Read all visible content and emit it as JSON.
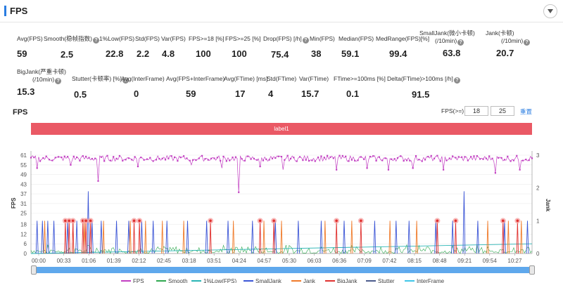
{
  "header": {
    "title": "FPS"
  },
  "stats": [
    {
      "label": "Avg(FPS)",
      "value": "59",
      "help": false
    },
    {
      "label": "Smooth(稳帧指数)",
      "value": "2.5",
      "help": true
    },
    {
      "label": "1%Low(FPS)",
      "value": "22.8",
      "help": false
    },
    {
      "label": "Std(FPS)",
      "value": "2.2",
      "help": false
    },
    {
      "label": "Var(FPS)",
      "value": "4.8",
      "help": false
    },
    {
      "label": "FPS>=18 [%]",
      "value": "100",
      "help": false
    },
    {
      "label": "FPS>=25 [%]",
      "value": "100",
      "help": false
    },
    {
      "label": "Drop(FPS) [/h]",
      "value": "75.4",
      "help": true
    },
    {
      "label": "Min(FPS)",
      "value": "38",
      "help": false
    },
    {
      "label": "Median(FPS)",
      "value": "59.1",
      "help": false
    },
    {
      "label": "MedRange(FPS)[%]",
      "value": "99.4",
      "help": false
    },
    {
      "label": "SmallJank(微小卡顿)",
      "label2": "(/10min)",
      "value": "63.8",
      "help": true
    },
    {
      "label": "Jank(卡顿)",
      "label2": "(/10min)",
      "value": "20.7",
      "help": true
    },
    {
      "label": "BigJank(严重卡顿)",
      "label2": "(/10min)",
      "value": "15.3",
      "help": true
    },
    {
      "label": "Stutter(卡顿率) [%]",
      "value": "0.5",
      "help": true
    },
    {
      "label": "Avg(InterFrame)",
      "value": "0",
      "help": false
    },
    {
      "label": "Avg(FPS+InterFrame)",
      "value": "59",
      "help": false
    },
    {
      "label": "Avg(FTime) [ms]",
      "value": "17",
      "help": false
    },
    {
      "label": "Std(FTime)",
      "value": "4",
      "help": false
    },
    {
      "label": "Var(FTime)",
      "value": "15.7",
      "help": false
    },
    {
      "label": "FTime>=100ms [%]",
      "value": "0.1",
      "help": false
    },
    {
      "label": "Delta(FTime)>100ms [/h]",
      "value": "91.5",
      "help": true
    }
  ],
  "chart_section": {
    "title": "FPS",
    "threshold_label": "FPS(>=)",
    "threshold_low": "18",
    "threshold_high": "25",
    "reset_label": "重置",
    "label_bar": "label1"
  },
  "colors": {
    "fps": "#c23fc2",
    "smooth": "#2fa84f",
    "low1": "#29b5b5",
    "smalljank": "#3b55d6",
    "jank": "#f07b2a",
    "bigjank": "#e0312f",
    "stutter": "#4b5b8c",
    "interframe": "#3fc6e8",
    "label_bar": "#ea5965",
    "slider": "#5fa8ec"
  },
  "chart_data": {
    "type": "line",
    "xlabel": "",
    "ylabel": "FPS",
    "y2label": "Jank",
    "ylim": [
      0,
      61
    ],
    "y_ticks": [
      0,
      6,
      12,
      18,
      25,
      31,
      37,
      43,
      49,
      55,
      61
    ],
    "y2lim": [
      0,
      3
    ],
    "y2_ticks": [
      0,
      1,
      2,
      3
    ],
    "x_ticks": [
      "00:00",
      "00:33",
      "01:06",
      "01:39",
      "02:12",
      "02:45",
      "03:18",
      "03:51",
      "04:24",
      "04:57",
      "05:30",
      "06:03",
      "06:36",
      "07:09",
      "07:42",
      "08:15",
      "08:48",
      "09:21",
      "09:54",
      "10:27"
    ],
    "duration_s": 656,
    "series": [
      {
        "name": "FPS",
        "baseline": 59,
        "dips": [
          [
            8,
            53
          ],
          [
            35,
            51
          ],
          [
            52,
            55
          ],
          [
            75,
            50
          ],
          [
            88,
            45
          ],
          [
            105,
            52
          ],
          [
            140,
            54
          ],
          [
            175,
            51
          ],
          [
            210,
            55
          ],
          [
            250,
            53
          ],
          [
            272,
            38
          ],
          [
            300,
            54
          ],
          [
            330,
            52
          ],
          [
            365,
            54
          ],
          [
            400,
            52
          ],
          [
            440,
            53
          ],
          [
            468,
            52
          ],
          [
            500,
            53
          ],
          [
            540,
            52
          ],
          [
            575,
            54
          ],
          [
            608,
            50
          ],
          [
            640,
            52
          ]
        ]
      },
      {
        "name": "Smooth",
        "range": [
          0,
          6
        ]
      },
      {
        "name": "1%Low(FPS)",
        "start": 0,
        "end": 6
      },
      {
        "name": "SmallJank",
        "spikes": [
          [
            8,
            1
          ],
          [
            15,
            1
          ],
          [
            22,
            1
          ],
          [
            30,
            1
          ],
          [
            48,
            1
          ],
          [
            60,
            1
          ],
          [
            75,
            1.9
          ],
          [
            80,
            1
          ],
          [
            92,
            1
          ],
          [
            112,
            1
          ],
          [
            128,
            1
          ],
          [
            145,
            1
          ],
          [
            160,
            1
          ],
          [
            178,
            1
          ],
          [
            205,
            1
          ],
          [
            230,
            1
          ],
          [
            258,
            1
          ],
          [
            290,
            1
          ],
          [
            320,
            1
          ],
          [
            350,
            1
          ],
          [
            380,
            1
          ],
          [
            410,
            1
          ],
          [
            450,
            1
          ],
          [
            478,
            1
          ],
          [
            495,
            1
          ],
          [
            530,
            1
          ],
          [
            552,
            1
          ],
          [
            567,
            1.9
          ],
          [
            585,
            1
          ],
          [
            620,
            1
          ],
          [
            650,
            1
          ]
        ]
      },
      {
        "name": "Jank",
        "spikes": [
          [
            18,
            1
          ],
          [
            55,
            1
          ],
          [
            70,
            1
          ],
          [
            95,
            1
          ],
          [
            130,
            1
          ],
          [
            150,
            1
          ],
          [
            172,
            1
          ],
          [
            200,
            1
          ],
          [
            265,
            1
          ],
          [
            305,
            1
          ],
          [
            328,
            1
          ],
          [
            385,
            1
          ],
          [
            420,
            1
          ],
          [
            470,
            1
          ],
          [
            505,
            1
          ],
          [
            598,
            1
          ],
          [
            625,
            1
          ],
          [
            642,
            1
          ]
        ]
      },
      {
        "name": "BigJank",
        "points": [
          [
            45,
            1
          ],
          [
            50,
            1
          ],
          [
            55,
            1
          ],
          [
            68,
            1
          ],
          [
            72,
            1
          ],
          [
            78,
            1
          ],
          [
            135,
            1
          ],
          [
            142,
            1
          ],
          [
            235,
            1
          ],
          [
            300,
            1
          ],
          [
            318,
            1
          ],
          [
            400,
            1
          ],
          [
            432,
            1
          ],
          [
            532,
            1
          ],
          [
            556,
            1
          ],
          [
            618,
            1
          ],
          [
            637,
            1
          ]
        ]
      },
      {
        "name": "Stutter",
        "values": []
      },
      {
        "name": "InterFrame",
        "values": []
      }
    ]
  }
}
